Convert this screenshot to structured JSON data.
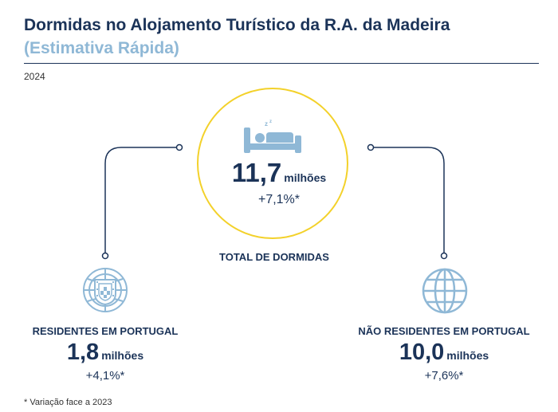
{
  "header": {
    "title": "Dormidas no Alojamento Turístico da R.A. da Madeira",
    "subtitle": "(Estimativa Rápida)",
    "year": "2024"
  },
  "total": {
    "icon": "bed-icon",
    "value": "11,7",
    "unit": "milhões",
    "variation": "+7,1%*",
    "label": "TOTAL DE DORMIDAS"
  },
  "residents": {
    "icon": "portugal-coat-of-arms-icon",
    "label": "RESIDENTES EM PORTUGAL",
    "value": "1,8",
    "unit": "milhões",
    "variation": "+4,1%*"
  },
  "non_residents": {
    "icon": "globe-icon",
    "label": "NÃO RESIDENTES EM PORTUGAL",
    "value": "10,0",
    "unit": "milhões",
    "variation": "+7,6%*"
  },
  "footnote": "* Variação face a 2023",
  "colors": {
    "navy": "#1b3358",
    "light_blue": "#8fb8d6",
    "yellow": "#f3d12a"
  }
}
